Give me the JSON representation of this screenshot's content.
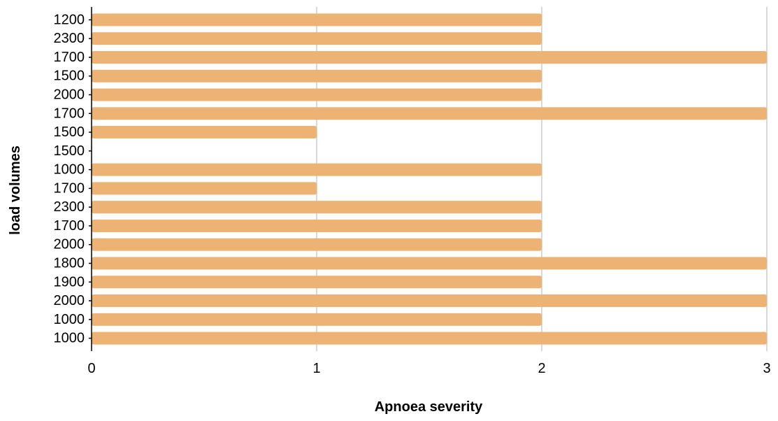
{
  "chart_data": {
    "type": "bar",
    "orientation": "horizontal",
    "title": "",
    "xlabel": "Apnoea severity",
    "ylabel": "load volumes",
    "categories": [
      "1200",
      "2300",
      "1700",
      "1500",
      "2000",
      "1700",
      "1500",
      "1500",
      "1000",
      "1700",
      "2300",
      "1700",
      "2000",
      "1800",
      "1900",
      "2000",
      "1000",
      "1000"
    ],
    "values": [
      2,
      2,
      3,
      2,
      2,
      3,
      1,
      0,
      2,
      1,
      2,
      2,
      2,
      3,
      2,
      3,
      2,
      3
    ],
    "xlim": [
      0,
      3
    ],
    "xticks": [
      "0",
      "1",
      "2",
      "3"
    ],
    "grid": "vertical",
    "legend": "none",
    "colors": {
      "bar": "#edb374",
      "grid": "#cccccc",
      "axis": "#000000"
    }
  }
}
